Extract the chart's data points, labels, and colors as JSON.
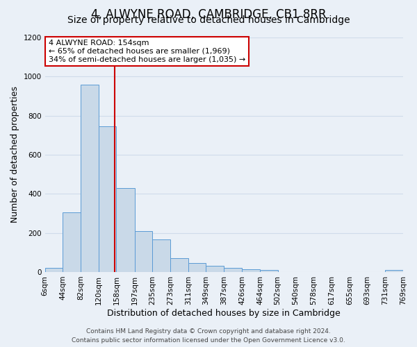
{
  "title": "4, ALWYNE ROAD, CAMBRIDGE, CB1 8RR",
  "subtitle": "Size of property relative to detached houses in Cambridge",
  "xlabel": "Distribution of detached houses by size in Cambridge",
  "ylabel": "Number of detached properties",
  "bin_edges": [
    6,
    44,
    82,
    120,
    158,
    197,
    235,
    273,
    311,
    349,
    387,
    426,
    464,
    502,
    540,
    578,
    617,
    655,
    693,
    731,
    769
  ],
  "bin_labels": [
    "6sqm",
    "44sqm",
    "82sqm",
    "120sqm",
    "158sqm",
    "197sqm",
    "235sqm",
    "273sqm",
    "311sqm",
    "349sqm",
    "387sqm",
    "426sqm",
    "464sqm",
    "502sqm",
    "540sqm",
    "578sqm",
    "617sqm",
    "655sqm",
    "693sqm",
    "731sqm",
    "769sqm"
  ],
  "counts": [
    20,
    305,
    960,
    745,
    430,
    210,
    165,
    70,
    47,
    33,
    20,
    13,
    10,
    0,
    0,
    0,
    0,
    0,
    0,
    10
  ],
  "bar_facecolor": "#c9d9e8",
  "bar_edgecolor": "#5b9bd5",
  "property_line_x": 154,
  "property_line_color": "#cc0000",
  "annotation_title": "4 ALWYNE ROAD: 154sqm",
  "annotation_line1": "← 65% of detached houses are smaller (1,969)",
  "annotation_line2": "34% of semi-detached houses are larger (1,035) →",
  "annotation_box_color": "#cc0000",
  "ylim": [
    0,
    1200
  ],
  "yticks": [
    0,
    200,
    400,
    600,
    800,
    1000,
    1200
  ],
  "footer1": "Contains HM Land Registry data © Crown copyright and database right 2024.",
  "footer2": "Contains public sector information licensed under the Open Government Licence v3.0.",
  "background_color": "#eaf0f7",
  "plot_bg_color": "#eaf0f7",
  "grid_color": "#d0dcea",
  "title_fontsize": 12,
  "subtitle_fontsize": 10,
  "axis_label_fontsize": 9,
  "tick_fontsize": 7.5,
  "footer_fontsize": 6.5
}
